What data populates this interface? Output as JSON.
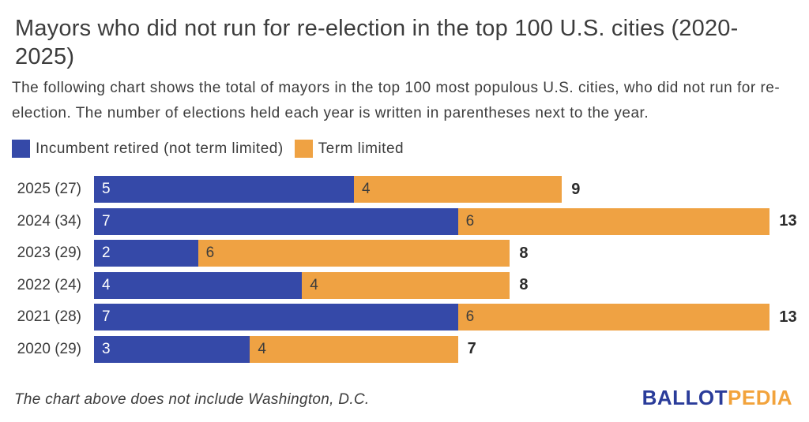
{
  "title": "Mayors who did not run for re-election in the top 100 U.S. cities (2020-2025)",
  "description": "The following chart shows the total of mayors in the top 100 most populous U.S. cities, who did not run for re-election. The number of elections held each year is written in parentheses next to the year.",
  "legend": [
    {
      "label": "Incumbent retired (not term limited)",
      "color": "#3549a8"
    },
    {
      "label": "Term limited",
      "color": "#efa243"
    }
  ],
  "footnote": "The chart above does not include Washington, D.C.",
  "logo": {
    "first": "BALLOT",
    "second": "PEDIA",
    "first_color": "#2a3c9a",
    "second_color": "#f2a33c"
  },
  "colors": {
    "incumbent_retired": "#3549a8",
    "term_limited": "#efa243",
    "text": "#3c3c3c"
  },
  "chart_data": {
    "type": "bar",
    "orientation": "horizontal",
    "stacked": true,
    "title": "Mayors who did not run for re-election in the top 100 U.S. cities (2020-2025)",
    "categories": [
      "2025 (27)",
      "2024 (34)",
      "2023 (29)",
      "2022 (24)",
      "2021 (28)",
      "2020 (29)"
    ],
    "series": [
      {
        "name": "Incumbent retired (not term limited)",
        "color": "#3549a8",
        "values": [
          5,
          7,
          2,
          4,
          7,
          3
        ]
      },
      {
        "name": "Term limited",
        "color": "#efa243",
        "values": [
          4,
          6,
          6,
          4,
          6,
          4
        ]
      }
    ],
    "totals": [
      9,
      13,
      8,
      8,
      13,
      7
    ],
    "xlim": [
      0,
      13
    ],
    "value_labels": "inside-start",
    "total_labels": "outside-end",
    "legend_position": "top-left",
    "grid": false
  }
}
